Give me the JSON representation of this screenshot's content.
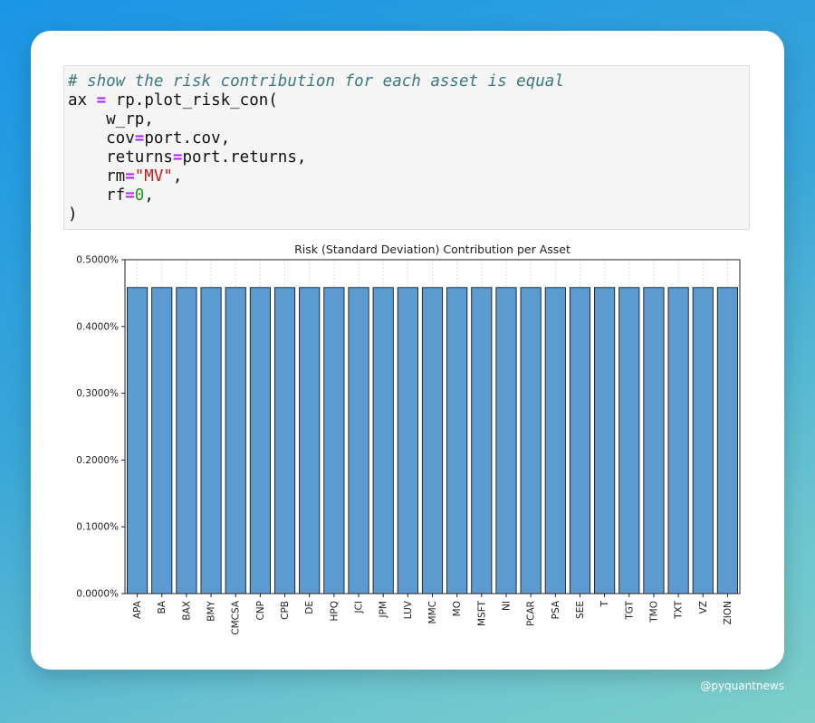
{
  "code": {
    "comment": "# show the risk contribution for each asset is equal",
    "line1_var": "ax",
    "line1_op": "=",
    "line1_call": " rp.plot_risk_con(",
    "line2": "    w_rp,",
    "line3_key": "    cov",
    "line3_op": "=",
    "line3_val": "port.cov,",
    "line4_key": "    returns",
    "line4_op": "=",
    "line4_val": "port.returns,",
    "line5_key": "    rm",
    "line5_op": "=",
    "line5_str": "\"MV\"",
    "line5_tail": ",",
    "line6_key": "    rf",
    "line6_op": "=",
    "line6_num": "0",
    "line6_tail": ",",
    "line7": ")"
  },
  "watermark": "@pyquantnews",
  "chart_data": {
    "type": "bar",
    "title": "Risk (Standard Deviation) Contribution per Asset",
    "xlabel": "",
    "ylabel": "",
    "categories": [
      "APA",
      "BA",
      "BAX",
      "BMY",
      "CMCSA",
      "CNP",
      "CPB",
      "DE",
      "HPQ",
      "JCI",
      "JPM",
      "LUV",
      "MMC",
      "MO",
      "MSFT",
      "NI",
      "PCAR",
      "PSA",
      "SEE",
      "T",
      "TGT",
      "TMO",
      "TXT",
      "VZ",
      "ZION"
    ],
    "values": [
      0.4583,
      0.4583,
      0.4583,
      0.4583,
      0.4583,
      0.4583,
      0.4583,
      0.4583,
      0.4583,
      0.4583,
      0.4583,
      0.4583,
      0.4583,
      0.4583,
      0.4583,
      0.4583,
      0.4583,
      0.4583,
      0.4583,
      0.4583,
      0.4583,
      0.4583,
      0.4583,
      0.4583,
      0.4583
    ],
    "value_unit": "%",
    "ylim": [
      0,
      0.5
    ],
    "yticks": [
      0.0,
      0.1,
      0.2,
      0.3,
      0.4,
      0.5
    ],
    "ytick_labels": [
      "0.0000%",
      "0.1000%",
      "0.2000%",
      "0.3000%",
      "0.4000%",
      "0.5000%"
    ],
    "grid": "vertical",
    "bar_color": "#5b9bd0",
    "bar_edge_color": "#1a1a1a"
  }
}
